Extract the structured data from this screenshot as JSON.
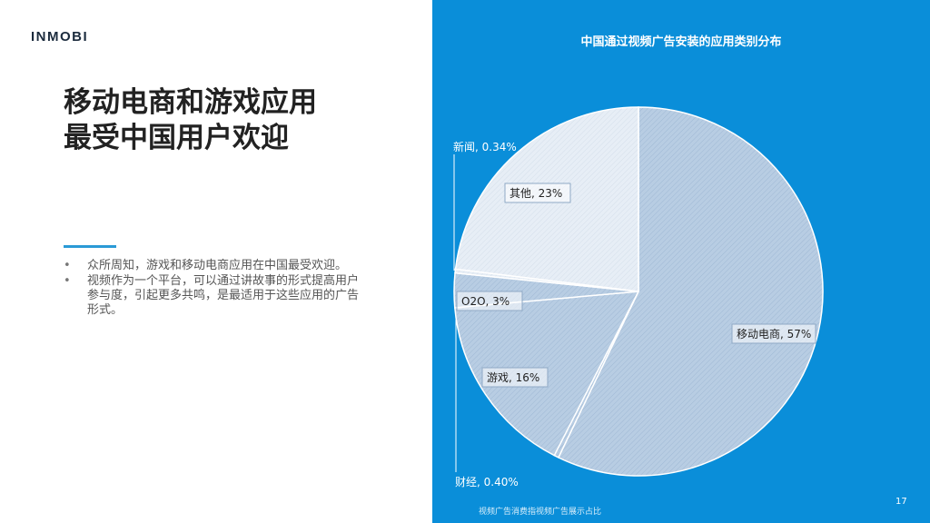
{
  "logo": "INMOBI",
  "headline": [
    "移动电商和游戏应用",
    "最受中国用户欢迎"
  ],
  "bullets": [
    "众所周知，游戏和移动电商应用在中国最受欢迎。",
    "视频作为一个平台，可以通过讲故事的形式提高用户参与度，引起更多共鸣，是最适用于这些应用的广告形式。"
  ],
  "bullet_marker": "•",
  "footnote": "视频广告消费指视频广告展示占比",
  "page_number": "17",
  "colors": {
    "panel": "#0a8ed9",
    "slice_main": "#b8cde3",
    "slice_other": "#e7eef6",
    "slice_edge": "#ffffff"
  },
  "chart_data": {
    "type": "pie",
    "title": "中国通过视频广告安装的应用类别分布",
    "slices": [
      {
        "name": "移动电商",
        "value": 57,
        "label": "移动电商, 57%"
      },
      {
        "name": "财经",
        "value": 0.4,
        "label": "财经, 0.40%"
      },
      {
        "name": "游戏",
        "value": 16,
        "label": "游戏, 16%"
      },
      {
        "name": "O2O",
        "value": 3,
        "label": "O2O, 3%"
      },
      {
        "name": "新闻",
        "value": 0.34,
        "label": "新闻, 0.34%"
      },
      {
        "name": "其他",
        "value": 23,
        "label": "其他, 23%"
      }
    ]
  }
}
